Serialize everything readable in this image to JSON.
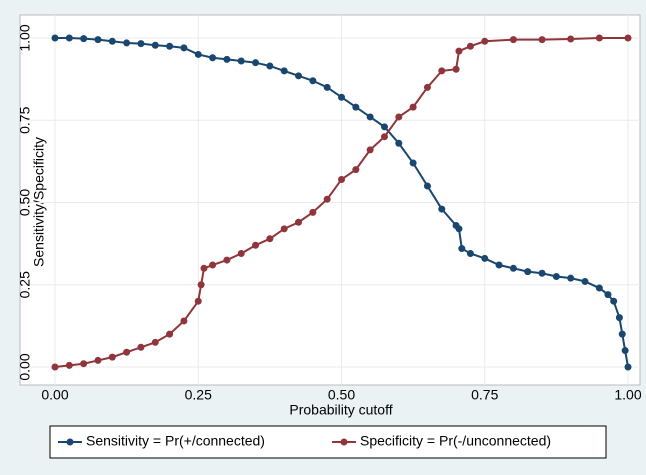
{
  "chart_data": {
    "type": "line",
    "xlabel": "Probability cutoff",
    "ylabel": "Sensitivity/Specificity",
    "xlim": [
      0,
      1
    ],
    "ylim": [
      0,
      1
    ],
    "xticks": [
      {
        "value": 0,
        "label": "0.00"
      },
      {
        "value": 0.25,
        "label": "0.25"
      },
      {
        "value": 0.5,
        "label": "0.50"
      },
      {
        "value": 0.75,
        "label": "0.75"
      },
      {
        "value": 1,
        "label": "1.00"
      }
    ],
    "yticks": [
      {
        "value": 0,
        "label": "0.00"
      },
      {
        "value": 0.25,
        "label": "0.25"
      },
      {
        "value": 0.5,
        "label": "0.50"
      },
      {
        "value": 0.75,
        "label": "0.75"
      },
      {
        "value": 1,
        "label": "1.00"
      }
    ],
    "grid": true,
    "legend": "bottom",
    "series": [
      {
        "name": "Sensitivity = Pr(+/connected)",
        "color": "#1a476f",
        "x": [
          0,
          0.025,
          0.05,
          0.075,
          0.1,
          0.125,
          0.15,
          0.175,
          0.2,
          0.225,
          0.25,
          0.275,
          0.3,
          0.325,
          0.35,
          0.375,
          0.4,
          0.425,
          0.45,
          0.475,
          0.5,
          0.525,
          0.55,
          0.575,
          0.6,
          0.625,
          0.65,
          0.675,
          0.7,
          0.705,
          0.71,
          0.725,
          0.75,
          0.775,
          0.8,
          0.825,
          0.85,
          0.875,
          0.9,
          0.925,
          0.95,
          0.965,
          0.975,
          0.985,
          0.99,
          0.995,
          1.0
        ],
        "values": [
          1.0,
          1.0,
          0.998,
          0.995,
          0.99,
          0.985,
          0.983,
          0.978,
          0.975,
          0.97,
          0.95,
          0.94,
          0.935,
          0.93,
          0.925,
          0.915,
          0.9,
          0.885,
          0.87,
          0.85,
          0.82,
          0.79,
          0.76,
          0.73,
          0.68,
          0.62,
          0.55,
          0.48,
          0.43,
          0.42,
          0.36,
          0.345,
          0.33,
          0.31,
          0.3,
          0.29,
          0.285,
          0.275,
          0.27,
          0.26,
          0.24,
          0.22,
          0.2,
          0.15,
          0.1,
          0.05,
          0.0
        ]
      },
      {
        "name": "Specificity = Pr(-/unconnected)",
        "color": "#90353b",
        "x": [
          0,
          0.025,
          0.05,
          0.075,
          0.1,
          0.125,
          0.15,
          0.175,
          0.2,
          0.225,
          0.25,
          0.255,
          0.26,
          0.275,
          0.3,
          0.325,
          0.35,
          0.375,
          0.4,
          0.425,
          0.45,
          0.475,
          0.5,
          0.525,
          0.55,
          0.575,
          0.6,
          0.625,
          0.65,
          0.675,
          0.7,
          0.705,
          0.725,
          0.75,
          0.8,
          0.85,
          0.9,
          0.95,
          1.0
        ],
        "values": [
          0,
          0.005,
          0.01,
          0.02,
          0.03,
          0.045,
          0.06,
          0.075,
          0.1,
          0.14,
          0.2,
          0.25,
          0.3,
          0.31,
          0.325,
          0.345,
          0.37,
          0.39,
          0.42,
          0.44,
          0.47,
          0.51,
          0.57,
          0.6,
          0.66,
          0.7,
          0.76,
          0.79,
          0.85,
          0.9,
          0.905,
          0.96,
          0.975,
          0.99,
          0.995,
          0.995,
          0.997,
          1.0,
          1.0
        ]
      }
    ]
  }
}
